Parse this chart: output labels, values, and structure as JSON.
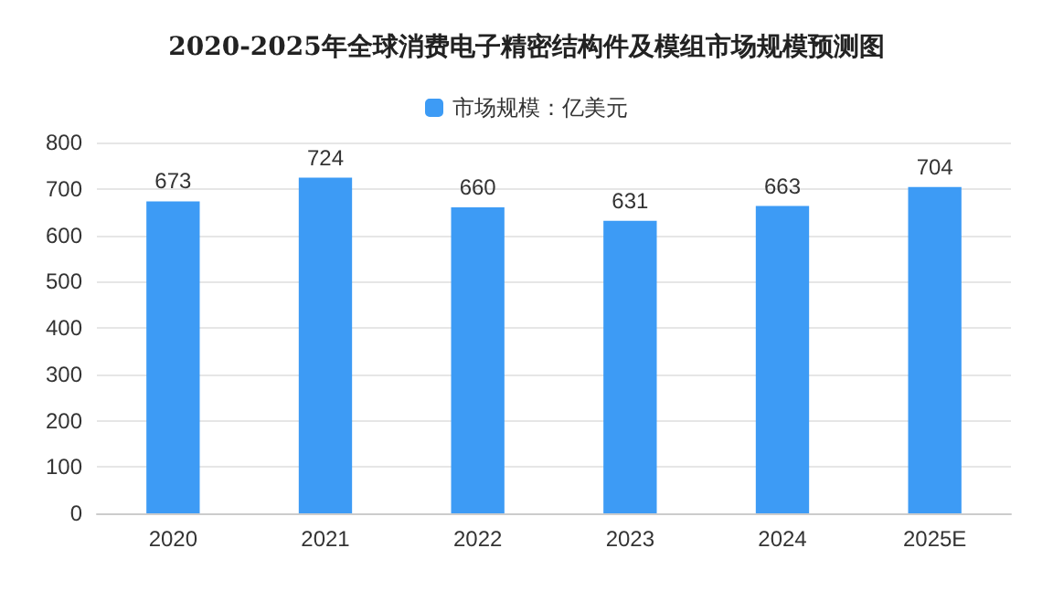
{
  "chart_data": {
    "type": "bar",
    "title": "2020-2025年全球消费电子精密结构件及模组市场规模预测图",
    "categories": [
      "2020",
      "2021",
      "2022",
      "2023",
      "2024",
      "2025E"
    ],
    "series": [
      {
        "name": "市场规模：亿美元",
        "color": "#3d9bf5",
        "values": [
          673,
          724,
          660,
          631,
          663,
          704
        ]
      }
    ],
    "ylim": [
      0,
      800
    ],
    "yticks": [
      0,
      100,
      200,
      300,
      400,
      500,
      600,
      700,
      800
    ],
    "grid": "y",
    "legend": "top",
    "data_labels": true
  }
}
